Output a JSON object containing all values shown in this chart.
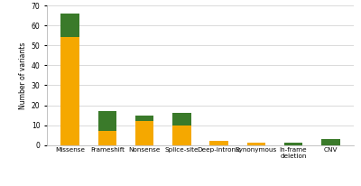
{
  "categories": [
    "Missense",
    "Frameshift",
    "Nonsense",
    "Splice-site",
    "Deep-intronic",
    "Synonymous",
    "In-frame\ndeletion",
    "CNV"
  ],
  "orange_values": [
    54,
    7,
    12,
    10,
    2,
    1,
    0,
    0
  ],
  "green_values": [
    12,
    10,
    3,
    6,
    0,
    0,
    1,
    3
  ],
  "orange_color": "#F5A800",
  "green_color": "#3A7A2A",
  "ylabel": "Number of variants",
  "ylim": [
    0,
    70
  ],
  "yticks": [
    0,
    10,
    20,
    30,
    40,
    50,
    60,
    70
  ],
  "background_color": "#FFFFFF",
  "grid_color": "#CCCCCC",
  "bar_width": 0.5
}
